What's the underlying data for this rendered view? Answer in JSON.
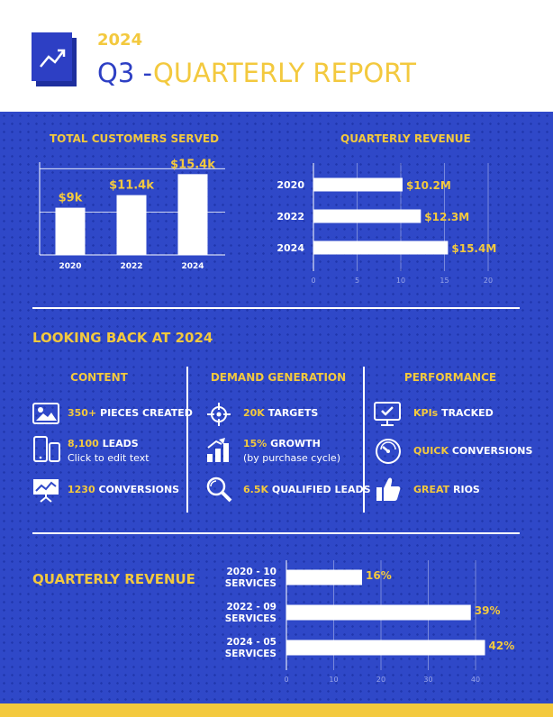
{
  "header": {
    "year": "2024",
    "title_prefix": "Q3",
    "title_dash": " -",
    "title_main": "QUARTERLY REPORT",
    "logo_icon": "trend-up-icon"
  },
  "customers_section": {
    "title": "TOTAL CUSTOMERS SERVED"
  },
  "revenue_section": {
    "title": "QUARTERLY REVENUE"
  },
  "looking_back": {
    "title": "LOOKING BACK AT 2024",
    "columns": [
      {
        "heading": "CONTENT",
        "items": [
          {
            "icon": "image-icon",
            "highlight": "350+",
            "text": " PIECES CREATED",
            "sub": ""
          },
          {
            "icon": "devices-icon",
            "highlight": "8,100",
            "text": " LEADS",
            "sub": "Click to edit text"
          },
          {
            "icon": "presentation-chart-icon",
            "highlight": "1230",
            "text": " CONVERSIONS",
            "sub": ""
          }
        ]
      },
      {
        "heading": "DEMAND GENERATION",
        "items": [
          {
            "icon": "crosshair-icon",
            "highlight": "20K",
            "text": " TARGETS",
            "sub": ""
          },
          {
            "icon": "bar-growth-icon",
            "highlight": "15%",
            "text": " GROWTH",
            "sub": "(by purchase cycle)"
          },
          {
            "icon": "magnifier-icon",
            "highlight": "6.5K",
            "text": " QUALIFIED LEADS",
            "sub": ""
          }
        ]
      },
      {
        "heading": "PERFORMANCE",
        "items": [
          {
            "icon": "monitor-check-icon",
            "highlight": "KPIs",
            "text": " TRACKED",
            "sub": ""
          },
          {
            "icon": "speedometer-icon",
            "highlight": "QUICK",
            "text": " CONVERSIONS",
            "sub": ""
          },
          {
            "icon": "thumbs-up-icon",
            "highlight": "GREAT",
            "text": " RIOS",
            "sub": ""
          }
        ]
      }
    ]
  },
  "bottom_section": {
    "title": "QUARTERLY REVENUE"
  },
  "chart_data": [
    {
      "type": "bar",
      "title": "TOTAL CUSTOMERS SERVED",
      "categories": [
        "2020",
        "2022",
        "2024"
      ],
      "values": [
        9,
        11.4,
        15.4
      ],
      "data_labels": [
        "$9k",
        "$11.4k",
        "$15.4k"
      ],
      "xlabel": "",
      "ylabel": "",
      "ylim": [
        0,
        17
      ],
      "grid": true
    },
    {
      "type": "bar",
      "orientation": "horizontal",
      "title": "QUARTERLY REVENUE",
      "categories": [
        "2020",
        "2022",
        "2024"
      ],
      "values": [
        10.2,
        12.3,
        15.4
      ],
      "data_labels": [
        "$10.2M",
        "$12.3M",
        "$15.4M"
      ],
      "xlim": [
        0,
        20
      ],
      "xticks": [
        "0",
        "5",
        "10",
        "15",
        "20"
      ],
      "grid": true
    },
    {
      "type": "bar",
      "orientation": "horizontal",
      "title": "QUARTERLY REVENUE",
      "categories": [
        "2020 - 10\nSERVICES",
        "2022 - 09\nSERVICES",
        "2024 - 05\nSERVICES"
      ],
      "category_lines": [
        [
          "2020 - 10",
          "SERVICES"
        ],
        [
          "2022 - 09",
          "SERVICES"
        ],
        [
          "2024 - 05",
          "SERVICES"
        ]
      ],
      "values": [
        16,
        39,
        42
      ],
      "data_labels": [
        "16%",
        "39%",
        "42%"
      ],
      "xlim": [
        0,
        40
      ],
      "xticks": [
        "0",
        "10",
        "20",
        "30",
        "40"
      ],
      "grid": true
    }
  ]
}
